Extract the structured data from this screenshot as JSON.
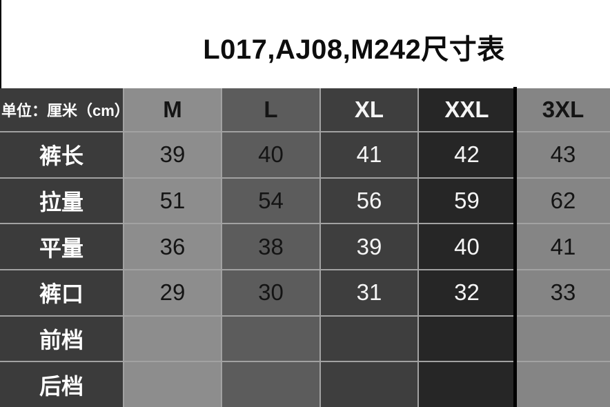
{
  "title": "L017,AJ08,M242尺寸表",
  "size_table": {
    "unit_label": "单位：厘米（cm）",
    "columns": [
      "M",
      "L",
      "XL",
      "XXL",
      "3XL"
    ],
    "rows": [
      {
        "label": "裤长",
        "values": [
          "39",
          "40",
          "41",
          "42",
          "43"
        ]
      },
      {
        "label": "拉量",
        "values": [
          "51",
          "54",
          "56",
          "59",
          "62"
        ]
      },
      {
        "label": "平量",
        "values": [
          "36",
          "38",
          "39",
          "40",
          "41"
        ]
      },
      {
        "label": "裤口",
        "values": [
          "29",
          "30",
          "31",
          "32",
          "33"
        ]
      },
      {
        "label": "前档",
        "values": [
          "",
          "",
          "",
          "",
          ""
        ]
      },
      {
        "label": "后档",
        "values": [
          "",
          "",
          "",
          "",
          ""
        ]
      }
    ]
  },
  "colors": {
    "label_column_bg": "#3b3b3b",
    "col_m_bg": "#8d8d8d",
    "col_l_bg": "#5c5c5c",
    "col_xl_bg": "#3e3e3e",
    "col_xxl_bg": "#262626",
    "col_3xl_bg": "#858585",
    "grid_line": "#a2a2a2",
    "divider": "#000000",
    "title_color": "#0d0d0d"
  }
}
